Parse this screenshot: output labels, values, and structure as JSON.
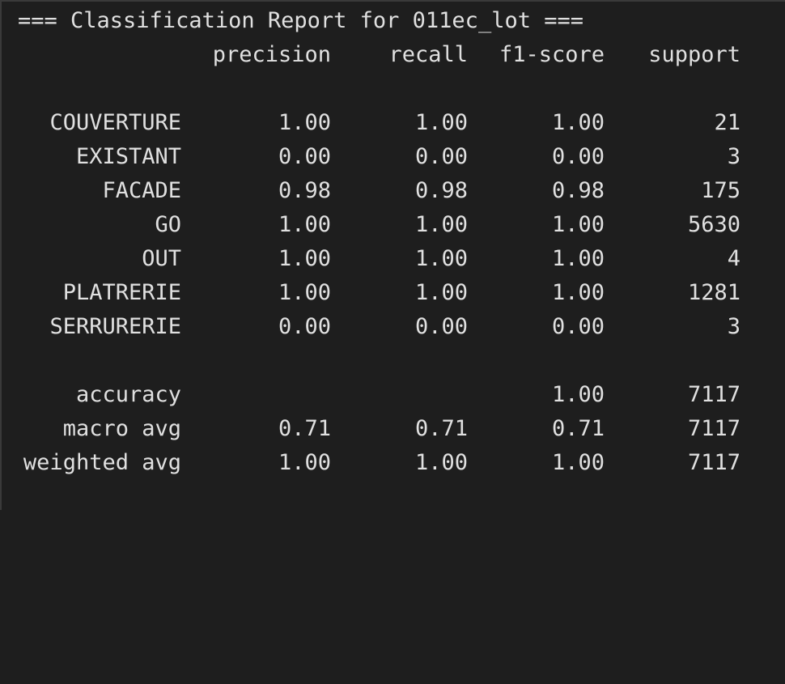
{
  "report": {
    "title": "=== Classification Report for 011ec_lot ===",
    "headers": [
      "precision",
      "recall",
      "f1-score",
      "support"
    ],
    "classes": [
      {
        "label": "COUVERTURE",
        "precision": "1.00",
        "recall": "1.00",
        "f1": "1.00",
        "support": "21"
      },
      {
        "label": "EXISTANT",
        "precision": "0.00",
        "recall": "0.00",
        "f1": "0.00",
        "support": "3"
      },
      {
        "label": "FACADE",
        "precision": "0.98",
        "recall": "0.98",
        "f1": "0.98",
        "support": "175"
      },
      {
        "label": "GO",
        "precision": "1.00",
        "recall": "1.00",
        "f1": "1.00",
        "support": "5630"
      },
      {
        "label": "OUT",
        "precision": "1.00",
        "recall": "1.00",
        "f1": "1.00",
        "support": "4"
      },
      {
        "label": "PLATRERIE",
        "precision": "1.00",
        "recall": "1.00",
        "f1": "1.00",
        "support": "1281"
      },
      {
        "label": "SERRURERIE",
        "precision": "0.00",
        "recall": "0.00",
        "f1": "0.00",
        "support": "3"
      }
    ],
    "summary": [
      {
        "label": "accuracy",
        "precision": "",
        "recall": "",
        "f1": "1.00",
        "support": "7117"
      },
      {
        "label": "macro avg",
        "precision": "0.71",
        "recall": "0.71",
        "f1": "0.71",
        "support": "7117"
      },
      {
        "label": "weighted avg",
        "precision": "1.00",
        "recall": "1.00",
        "f1": "1.00",
        "support": "7117"
      }
    ]
  }
}
